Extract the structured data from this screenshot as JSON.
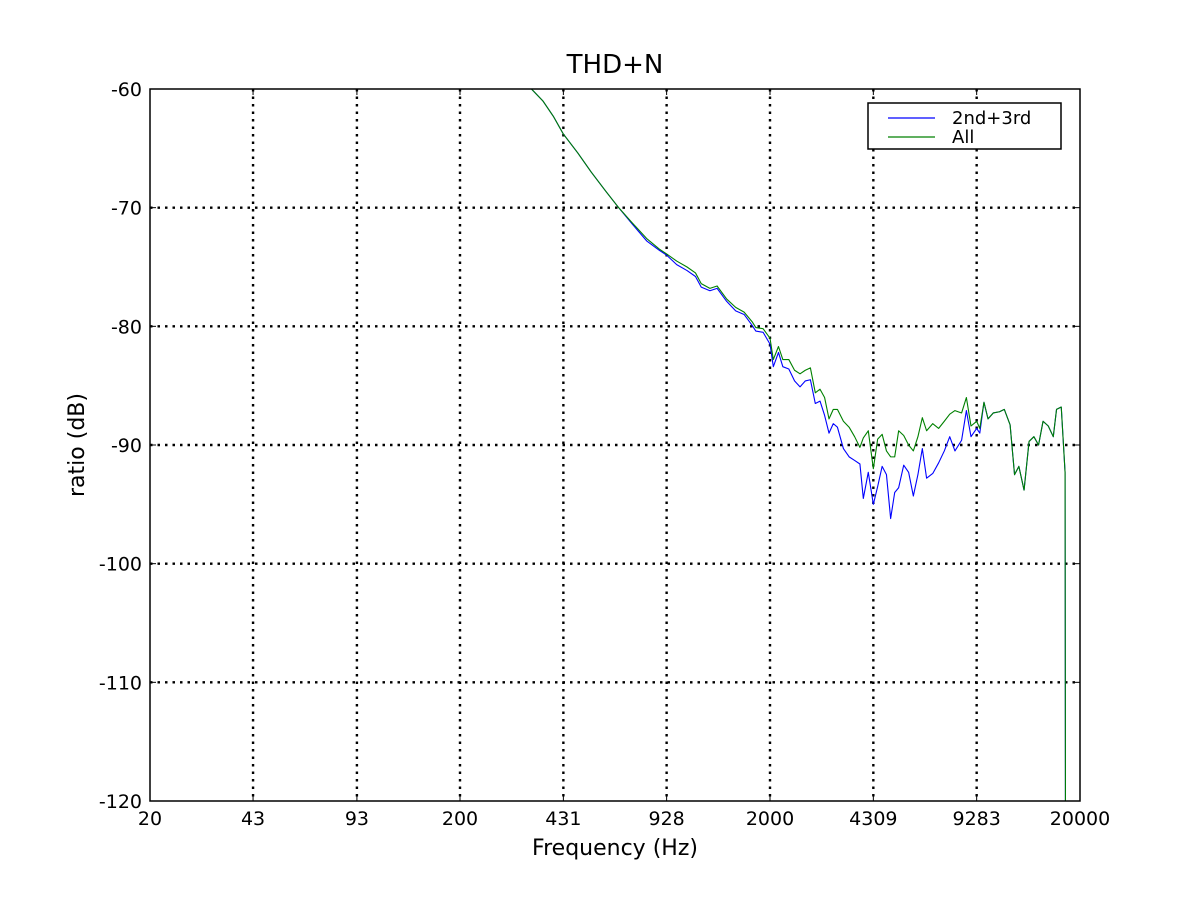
{
  "chart_data": {
    "type": "line",
    "title": "THD+N",
    "xlabel": "Frequency (Hz)",
    "ylabel": "ratio (dB)",
    "x_scale": "log",
    "xlim": [
      20,
      20000
    ],
    "ylim": [
      -120,
      -60
    ],
    "x_ticks": [
      20,
      43,
      93,
      200,
      431,
      928,
      2000,
      4309,
      9283,
      20000
    ],
    "x_tick_labels": [
      "20",
      "43",
      "93",
      "200",
      "431",
      "928",
      "2000",
      "4309",
      "9283",
      "20000"
    ],
    "y_ticks": [
      -120,
      -110,
      -100,
      -90,
      -80,
      -70,
      -60
    ],
    "y_tick_labels": [
      "-120",
      "-110",
      "-100",
      "-90",
      "-80",
      "-70",
      "-60"
    ],
    "grid": true,
    "legend_position": "upper right",
    "series": [
      {
        "name": "2nd+3rd",
        "color": "#0000ff",
        "points": [
          [
            340,
            -60.0
          ],
          [
            370,
            -61.0
          ],
          [
            400,
            -62.3
          ],
          [
            431,
            -63.8
          ],
          [
            480,
            -65.4
          ],
          [
            530,
            -67.0
          ],
          [
            590,
            -68.6
          ],
          [
            650,
            -70.0
          ],
          [
            720,
            -71.4
          ],
          [
            800,
            -72.8
          ],
          [
            880,
            -73.6
          ],
          [
            928,
            -74.0
          ],
          [
            1000,
            -74.8
          ],
          [
            1080,
            -75.3
          ],
          [
            1150,
            -75.8
          ],
          [
            1200,
            -76.7
          ],
          [
            1280,
            -77.0
          ],
          [
            1350,
            -76.8
          ],
          [
            1450,
            -77.9
          ],
          [
            1550,
            -78.7
          ],
          [
            1650,
            -79.0
          ],
          [
            1750,
            -79.9
          ],
          [
            1800,
            -80.4
          ],
          [
            1900,
            -80.5
          ],
          [
            2000,
            -81.5
          ],
          [
            2050,
            -83.4
          ],
          [
            2130,
            -82.2
          ],
          [
            2200,
            -83.4
          ],
          [
            2300,
            -83.6
          ],
          [
            2400,
            -84.6
          ],
          [
            2500,
            -85.1
          ],
          [
            2600,
            -84.6
          ],
          [
            2700,
            -84.5
          ],
          [
            2800,
            -86.5
          ],
          [
            2900,
            -86.3
          ],
          [
            3000,
            -87.5
          ],
          [
            3100,
            -89.0
          ],
          [
            3200,
            -88.2
          ],
          [
            3300,
            -88.5
          ],
          [
            3450,
            -90.3
          ],
          [
            3600,
            -91.0
          ],
          [
            3750,
            -91.3
          ],
          [
            3900,
            -91.6
          ],
          [
            4000,
            -94.5
          ],
          [
            4150,
            -92.3
          ],
          [
            4309,
            -95.0
          ],
          [
            4450,
            -93.5
          ],
          [
            4600,
            -91.8
          ],
          [
            4750,
            -92.5
          ],
          [
            4900,
            -96.2
          ],
          [
            5050,
            -94.0
          ],
          [
            5200,
            -93.6
          ],
          [
            5400,
            -91.7
          ],
          [
            5600,
            -92.3
          ],
          [
            5800,
            -94.3
          ],
          [
            6000,
            -92.5
          ],
          [
            6200,
            -90.3
          ],
          [
            6400,
            -92.8
          ],
          [
            6700,
            -92.4
          ],
          [
            7000,
            -91.5
          ],
          [
            7300,
            -90.5
          ],
          [
            7600,
            -89.3
          ],
          [
            7900,
            -90.5
          ],
          [
            8300,
            -89.6
          ],
          [
            8600,
            -87.1
          ],
          [
            8900,
            -89.3
          ],
          [
            9283,
            -88.6
          ],
          [
            9500,
            -89.0
          ],
          [
            9800,
            -86.4
          ],
          [
            10100,
            -87.8
          ],
          [
            10500,
            -87.3
          ],
          [
            11000,
            -87.2
          ],
          [
            11400,
            -87.0
          ],
          [
            11900,
            -88.3
          ],
          [
            12300,
            -92.5
          ],
          [
            12700,
            -91.8
          ],
          [
            13200,
            -93.8
          ],
          [
            13700,
            -89.7
          ],
          [
            14200,
            -89.3
          ],
          [
            14700,
            -90.0
          ],
          [
            15200,
            -88.0
          ],
          [
            15800,
            -88.4
          ],
          [
            16400,
            -89.3
          ],
          [
            16800,
            -87.0
          ],
          [
            17400,
            -86.8
          ],
          [
            17900,
            -92.3
          ],
          [
            17950,
            -120.0
          ]
        ]
      },
      {
        "name": "All",
        "color": "#008000",
        "points": [
          [
            340,
            -60.0
          ],
          [
            370,
            -61.0
          ],
          [
            400,
            -62.3
          ],
          [
            431,
            -63.8
          ],
          [
            480,
            -65.4
          ],
          [
            530,
            -67.0
          ],
          [
            590,
            -68.6
          ],
          [
            650,
            -70.0
          ],
          [
            720,
            -71.3
          ],
          [
            800,
            -72.6
          ],
          [
            880,
            -73.5
          ],
          [
            928,
            -73.9
          ],
          [
            1000,
            -74.5
          ],
          [
            1080,
            -75.0
          ],
          [
            1150,
            -75.5
          ],
          [
            1200,
            -76.4
          ],
          [
            1280,
            -76.8
          ],
          [
            1350,
            -76.6
          ],
          [
            1450,
            -77.7
          ],
          [
            1550,
            -78.4
          ],
          [
            1650,
            -78.8
          ],
          [
            1750,
            -79.6
          ],
          [
            1800,
            -80.1
          ],
          [
            1900,
            -80.2
          ],
          [
            2000,
            -81.0
          ],
          [
            2050,
            -82.8
          ],
          [
            2130,
            -81.7
          ],
          [
            2200,
            -82.8
          ],
          [
            2300,
            -82.8
          ],
          [
            2400,
            -83.7
          ],
          [
            2500,
            -84.0
          ],
          [
            2600,
            -83.7
          ],
          [
            2700,
            -83.5
          ],
          [
            2800,
            -85.6
          ],
          [
            2900,
            -85.3
          ],
          [
            3000,
            -86.0
          ],
          [
            3100,
            -87.8
          ],
          [
            3200,
            -87.0
          ],
          [
            3300,
            -87.0
          ],
          [
            3450,
            -88.0
          ],
          [
            3600,
            -88.5
          ],
          [
            3750,
            -89.3
          ],
          [
            3900,
            -90.2
          ],
          [
            4000,
            -89.4
          ],
          [
            4150,
            -88.8
          ],
          [
            4309,
            -92.0
          ],
          [
            4450,
            -89.5
          ],
          [
            4600,
            -89.1
          ],
          [
            4750,
            -90.5
          ],
          [
            4900,
            -91.0
          ],
          [
            5050,
            -91.0
          ],
          [
            5200,
            -88.8
          ],
          [
            5400,
            -89.2
          ],
          [
            5600,
            -90.0
          ],
          [
            5800,
            -90.5
          ],
          [
            6000,
            -89.3
          ],
          [
            6200,
            -87.7
          ],
          [
            6400,
            -88.8
          ],
          [
            6700,
            -88.2
          ],
          [
            7000,
            -88.6
          ],
          [
            7300,
            -88.0
          ],
          [
            7600,
            -87.4
          ],
          [
            7900,
            -87.1
          ],
          [
            8300,
            -87.3
          ],
          [
            8600,
            -86.0
          ],
          [
            8900,
            -88.4
          ],
          [
            9283,
            -88.0
          ],
          [
            9500,
            -88.6
          ],
          [
            9800,
            -86.4
          ],
          [
            10100,
            -87.8
          ],
          [
            10500,
            -87.3
          ],
          [
            11000,
            -87.2
          ],
          [
            11400,
            -87.0
          ],
          [
            11900,
            -88.3
          ],
          [
            12300,
            -92.5
          ],
          [
            12700,
            -91.8
          ],
          [
            13200,
            -93.8
          ],
          [
            13700,
            -89.7
          ],
          [
            14200,
            -89.3
          ],
          [
            14700,
            -90.0
          ],
          [
            15200,
            -88.0
          ],
          [
            15800,
            -88.4
          ],
          [
            16400,
            -89.3
          ],
          [
            16800,
            -87.0
          ],
          [
            17400,
            -86.8
          ],
          [
            17900,
            -92.3
          ],
          [
            17950,
            -120.0
          ]
        ]
      }
    ]
  }
}
